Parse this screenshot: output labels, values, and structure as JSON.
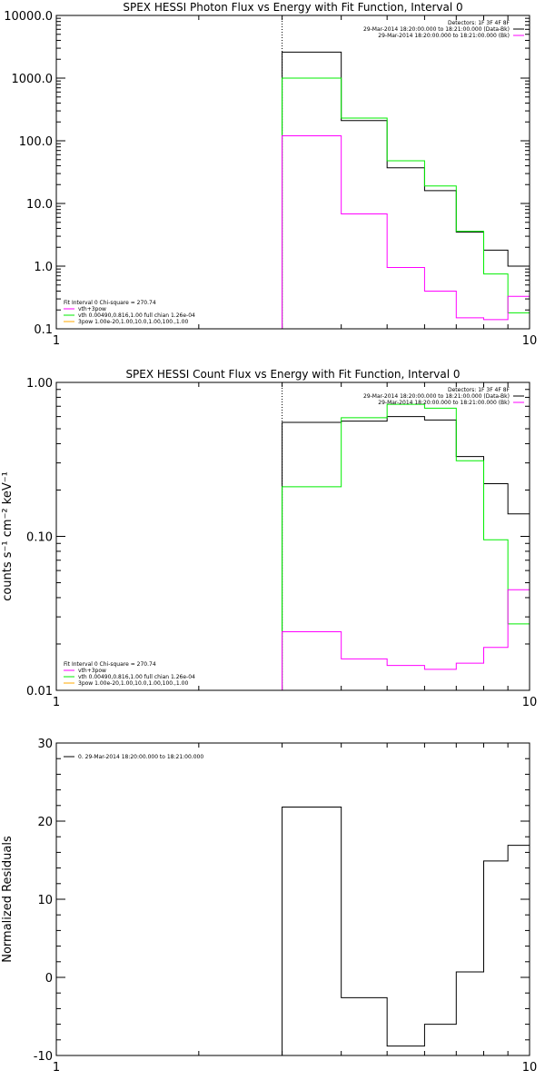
{
  "chart_data": [
    {
      "type": "line",
      "title": "SPEX HESSI Photon Flux vs Energy with Fit Function, Interval 0",
      "xscale": "log",
      "yscale": "log",
      "xlim": [
        1,
        10
      ],
      "ylim": [
        0.1,
        10000
      ],
      "x_ticks": [
        {
          "value": 1,
          "label": "1"
        },
        {
          "value": 10,
          "label": "10"
        }
      ],
      "y_ticks": [
        {
          "value": 0.1,
          "label": "0.1"
        },
        {
          "value": 1,
          "label": "1.0"
        },
        {
          "value": 10,
          "label": "10.0"
        },
        {
          "value": 100,
          "label": "100.0"
        },
        {
          "value": 1000,
          "label": "1000.0"
        },
        {
          "value": 10000,
          "label": "10000.0"
        }
      ],
      "vline": 3,
      "legend_right": [
        {
          "text": "Detectors: 1F 3F 4F 8F",
          "color": null
        },
        {
          "text": "29-Mar-2014 18:20:00.000 to 18:21:00.000 (Data-Bk)",
          "color": "#000000"
        },
        {
          "text": "29-Mar-2014 18:20:00.000 to 18:21:00.000 (Bk)",
          "color": "#ff00ff"
        }
      ],
      "legend_left": [
        {
          "text": "Fit Interval 0   Chi-square = 270.74",
          "color": null
        },
        {
          "text": "vth+3pow",
          "color": "#ff00ff"
        },
        {
          "text": "vth 0.00490,0.816,1.00   full chian 1.26e-04",
          "color": "#00ee00"
        },
        {
          "text": "3pow 1.00e-20,1.00,10.0,1.00,100.,1.00",
          "color": "#ffaa00"
        }
      ],
      "edges": [
        3,
        4,
        5,
        6,
        7,
        8,
        9,
        10
      ],
      "series": [
        {
          "color": "#000000",
          "values": [
            2600,
            210,
            37,
            16,
            3.5,
            1.8,
            1.0
          ]
        },
        {
          "color": "#00ee00",
          "values": [
            1000,
            230,
            48,
            19,
            3.6,
            0.75,
            0.18
          ]
        },
        {
          "color": "#ff00ff",
          "values": [
            120,
            6.8,
            0.95,
            0.4,
            0.15,
            0.14,
            0.33
          ]
        }
      ]
    },
    {
      "type": "line",
      "title": "SPEX HESSI Count Flux vs Energy with Fit Function, Interval 0",
      "ylabel": "counts s⁻¹ cm⁻² keV⁻¹",
      "xscale": "log",
      "yscale": "log",
      "xlim": [
        1,
        10
      ],
      "ylim": [
        0.01,
        1
      ],
      "x_ticks": [
        {
          "value": 1,
          "label": "1"
        },
        {
          "value": 10,
          "label": "10"
        }
      ],
      "y_ticks": [
        {
          "value": 0.01,
          "label": "0.01"
        },
        {
          "value": 0.1,
          "label": "0.10"
        },
        {
          "value": 1,
          "label": "1.00"
        }
      ],
      "vline": 3,
      "legend_right": [
        {
          "text": "Detectors: 1F 3F 4F 8F",
          "color": null
        },
        {
          "text": "29-Mar-2014 18:20:00.000 to 18:21:00.000 (Data-Bk)",
          "color": "#000000"
        },
        {
          "text": "29-Mar-2014 18:20:00.000 to 18:21:00.000 (Bk)",
          "color": "#ff00ff"
        }
      ],
      "legend_left": [
        {
          "text": "Fit Interval 0   Chi-square = 270.74",
          "color": null
        },
        {
          "text": "vth+3pow",
          "color": "#ff00ff"
        },
        {
          "text": "vth 0.00490,0.816,1.00   full chian 1.26e-04",
          "color": "#00ee00"
        },
        {
          "text": "3pow 1.00e-20,1.00,10.0,1.00,100.,1.00",
          "color": "#ffaa00"
        }
      ],
      "edges": [
        3,
        4,
        5,
        6,
        7,
        8,
        9,
        10
      ],
      "series": [
        {
          "color": "#000000",
          "values": [
            0.55,
            0.56,
            0.6,
            0.57,
            0.33,
            0.22,
            0.14
          ]
        },
        {
          "color": "#00ee00",
          "values": [
            0.21,
            0.59,
            0.72,
            0.68,
            0.31,
            0.095,
            0.027
          ]
        },
        {
          "color": "#ff00ff",
          "values": [
            0.024,
            0.016,
            0.0145,
            0.0137,
            0.015,
            0.019,
            0.045
          ]
        }
      ]
    },
    {
      "type": "line",
      "title": "",
      "ylabel": "Normalized Residuals",
      "xscale": "log",
      "yscale": "linear",
      "xlim": [
        1,
        10
      ],
      "ylim": [
        -10,
        30
      ],
      "x_ticks": [
        {
          "value": 1,
          "label": "1"
        },
        {
          "value": 10,
          "label": "10"
        }
      ],
      "y_ticks": [
        {
          "value": -10,
          "label": "-10"
        },
        {
          "value": 0,
          "label": "0"
        },
        {
          "value": 10,
          "label": "10"
        },
        {
          "value": 20,
          "label": "20"
        },
        {
          "value": 30,
          "label": "30"
        }
      ],
      "legend_left_top": [
        {
          "text": "0. 29-Mar-2014 18:20:00.000 to 18:21:00.000",
          "color": "#000000"
        }
      ],
      "edges": [
        3,
        4,
        5,
        6,
        7,
        8,
        9,
        10
      ],
      "series": [
        {
          "color": "#000000",
          "values": [
            21.8,
            -2.6,
            -8.8,
            -6.0,
            0.7,
            14.9,
            16.9
          ]
        }
      ]
    }
  ]
}
